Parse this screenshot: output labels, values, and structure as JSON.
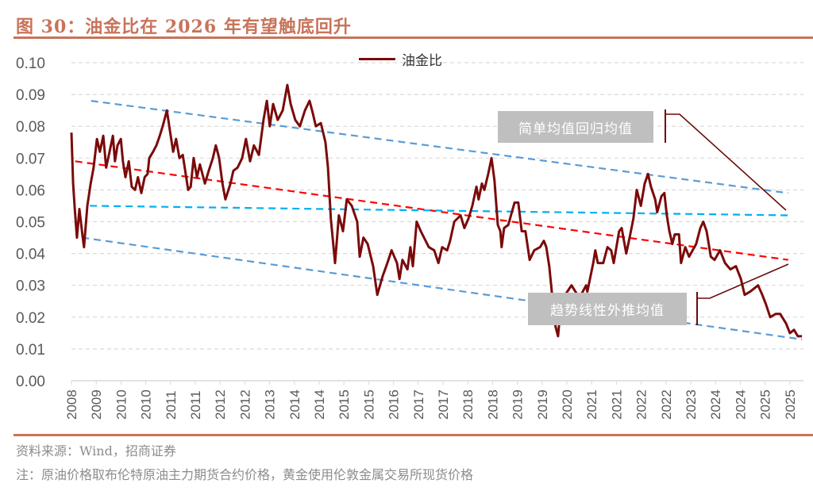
{
  "header": {
    "title": "图 30：油金比在 2026 年有望触底回升"
  },
  "footer": {
    "source": "资料来源：Wind，招商证券",
    "note": "注：原油价格取布伦特原油主力期货合约价格，黄金使用伦敦金属交易所现货价格"
  },
  "chart_data": {
    "type": "line",
    "title": "",
    "xlabel": "",
    "ylabel": "",
    "ylim": [
      0,
      0.1
    ],
    "yticks": [
      "0.00",
      "0.01",
      "0.02",
      "0.03",
      "0.04",
      "0.05",
      "0.06",
      "0.07",
      "0.08",
      "0.09",
      "0.10"
    ],
    "xlim": [
      2008.0,
      2025.5
    ],
    "xtick_labels": [
      "2008",
      "2009",
      "2010",
      "2010",
      "2011",
      "2011",
      "2012",
      "2012",
      "2013",
      "2014",
      "2014",
      "2015",
      "2015",
      "2016",
      "2017",
      "2017",
      "2018",
      "2018",
      "2019",
      "2019",
      "2020",
      "2021",
      "2021",
      "2022",
      "2022",
      "2023",
      "2024",
      "2024",
      "2025",
      "2025"
    ],
    "grid": "horizontal dashed",
    "legend_position": "top-center",
    "series": [
      {
        "name": "油金比",
        "color": "#7b0a0a",
        "x": [
          2008.0,
          2008.04,
          2008.08,
          2008.13,
          2008.19,
          2008.27,
          2008.3,
          2008.38,
          2008.46,
          2008.53,
          2008.61,
          2008.68,
          2008.76,
          2008.83,
          2008.91,
          2008.99,
          2009.04,
          2009.1,
          2009.18,
          2009.23,
          2009.29,
          2009.37,
          2009.44,
          2009.52,
          2009.59,
          2009.67,
          2009.75,
          2009.82,
          2009.86,
          2009.95,
          2010.03,
          2010.11,
          2010.18,
          2010.28,
          2010.35,
          2010.43,
          2010.5,
          2010.58,
          2010.66,
          2010.73,
          2010.79,
          2010.85,
          2010.92,
          2011.0,
          2011.07,
          2011.19,
          2011.28,
          2011.38,
          2011.45,
          2011.53,
          2011.61,
          2011.68,
          2011.8,
          2011.87,
          2011.97,
          2012.08,
          2012.17,
          2012.27,
          2012.36,
          2012.48,
          2012.59,
          2012.67,
          2012.74,
          2012.82,
          2012.93,
          2013.05,
          2013.16,
          2013.24,
          2013.35,
          2013.46,
          2013.58,
          2013.69,
          2013.77,
          2013.84,
          2013.96,
          2014.07,
          2014.13,
          2014.2,
          2014.3,
          2014.39,
          2014.49,
          2014.58,
          2014.7,
          2014.83,
          2014.89,
          2014.98,
          2015.08,
          2015.21,
          2015.31,
          2015.44,
          2015.55,
          2015.65,
          2015.78,
          2015.84,
          2015.91,
          2016.03,
          2016.1,
          2016.16,
          2016.25,
          2016.35,
          2016.54,
          2016.67,
          2016.77,
          2016.86,
          2016.98,
          2017.05,
          2017.15,
          2017.3,
          2017.39,
          2017.49,
          2017.58,
          2017.68,
          2017.73,
          2017.81,
          2017.87,
          2017.96,
          2018.04,
          2018.11,
          2018.19,
          2018.25,
          2018.28,
          2018.34,
          2018.44,
          2018.59,
          2018.68,
          2018.76,
          2018.85,
          2018.95,
          2019.06,
          2019.2,
          2019.29,
          2019.35,
          2019.42,
          2019.48,
          2019.57,
          2019.63,
          2019.67,
          2019.8,
          2019.95,
          2020.14,
          2020.3,
          2020.33,
          2020.47,
          2020.52,
          2020.58,
          2020.71,
          2020.81,
          2020.9,
          2020.96,
          2021.09,
          2021.15,
          2021.26,
          2021.34,
          2021.43,
          2021.51,
          2021.61,
          2021.7,
          2021.78,
          2021.85,
          2021.95,
          2022.0,
          2022.1,
          2022.17,
          2022.23,
          2022.29,
          2022.36,
          2022.42,
          2022.52,
          2022.57,
          2022.67,
          2022.76,
          2022.93,
          2023.03,
          2023.1,
          2023.18,
          2023.28,
          2023.37,
          2023.5,
          2023.62,
          2023.75,
          2023.88,
          2024.0,
          2024.09,
          2024.22,
          2024.41,
          2024.51,
          2024.6,
          2024.7,
          2024.83,
          2024.94,
          2025.08,
          2025.17,
          2025.27,
          2025.36,
          2025.46
        ],
        "values": [
          0.078,
          0.062,
          0.054,
          0.045,
          0.054,
          0.045,
          0.042,
          0.055,
          0.062,
          0.067,
          0.076,
          0.072,
          0.077,
          0.067,
          0.072,
          0.077,
          0.069,
          0.074,
          0.076,
          0.069,
          0.064,
          0.069,
          0.061,
          0.06,
          0.064,
          0.059,
          0.064,
          0.065,
          0.07,
          0.072,
          0.074,
          0.077,
          0.08,
          0.085,
          0.079,
          0.072,
          0.076,
          0.07,
          0.071,
          0.065,
          0.06,
          0.061,
          0.07,
          0.064,
          0.068,
          0.062,
          0.066,
          0.07,
          0.074,
          0.07,
          0.062,
          0.057,
          0.062,
          0.066,
          0.067,
          0.07,
          0.076,
          0.069,
          0.074,
          0.071,
          0.082,
          0.088,
          0.08,
          0.087,
          0.082,
          0.085,
          0.093,
          0.087,
          0.082,
          0.08,
          0.085,
          0.088,
          0.084,
          0.08,
          0.081,
          0.075,
          0.067,
          0.051,
          0.037,
          0.052,
          0.047,
          0.057,
          0.055,
          0.05,
          0.039,
          0.045,
          0.043,
          0.036,
          0.027,
          0.033,
          0.037,
          0.041,
          0.037,
          0.032,
          0.038,
          0.035,
          0.042,
          0.036,
          0.05,
          0.047,
          0.042,
          0.041,
          0.037,
          0.042,
          0.041,
          0.044,
          0.05,
          0.052,
          0.048,
          0.051,
          0.055,
          0.061,
          0.057,
          0.062,
          0.06,
          0.065,
          0.07,
          0.063,
          0.049,
          0.047,
          0.042,
          0.048,
          0.049,
          0.056,
          0.056,
          0.047,
          0.047,
          0.038,
          0.041,
          0.042,
          0.044,
          0.042,
          0.036,
          0.028,
          0.017,
          0.014,
          0.02,
          0.027,
          0.03,
          0.026,
          0.03,
          0.028,
          0.037,
          0.041,
          0.037,
          0.037,
          0.042,
          0.041,
          0.037,
          0.047,
          0.048,
          0.04,
          0.045,
          0.051,
          0.06,
          0.055,
          0.062,
          0.065,
          0.061,
          0.057,
          0.053,
          0.058,
          0.059,
          0.052,
          0.047,
          0.043,
          0.046,
          0.046,
          0.037,
          0.042,
          0.039,
          0.043,
          0.048,
          0.05,
          0.047,
          0.039,
          0.038,
          0.041,
          0.037,
          0.035,
          0.036,
          0.032,
          0.027,
          0.028,
          0.03,
          0.027,
          0.024,
          0.02,
          0.021,
          0.021,
          0.018,
          0.015,
          0.016,
          0.014,
          0.014
        ]
      }
    ],
    "trend_lines": [
      {
        "role": "upper-channel",
        "color": "#5b9bd5",
        "x": [
          2008.47,
          2025.13
        ],
        "values": [
          0.088,
          0.059
        ]
      },
      {
        "role": "linear-trend",
        "color": "#ff0000",
        "x": [
          2008.09,
          2025.13
        ],
        "values": [
          0.069,
          0.038
        ]
      },
      {
        "role": "simple-mean",
        "color": "#00b0f0",
        "x": [
          2008.44,
          2025.13
        ],
        "values": [
          0.055,
          0.052
        ]
      },
      {
        "role": "lower-channel",
        "color": "#5b9bd5",
        "x": [
          2008.25,
          2025.46
        ],
        "values": [
          0.045,
          0.013
        ]
      }
    ],
    "annotations": [
      {
        "text": "简单均值回归均值"
      },
      {
        "text": "趋势线性外推均值"
      }
    ]
  }
}
